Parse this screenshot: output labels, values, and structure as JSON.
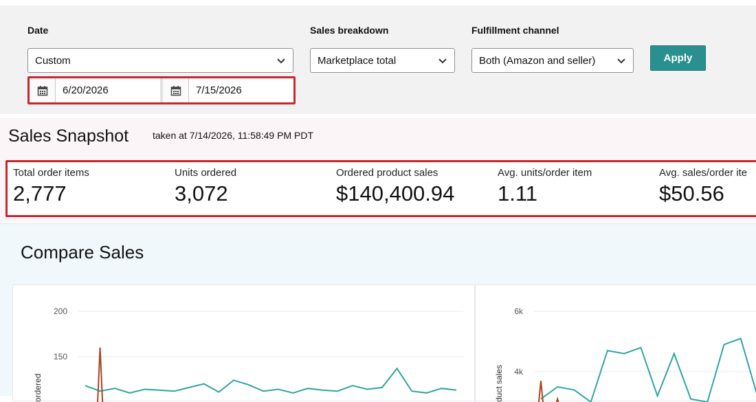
{
  "filters": {
    "date_label": "Date",
    "date_value": "Custom",
    "start_date": "6/20/2026",
    "end_date": "7/15/2026",
    "breakdown_label": "Sales breakdown",
    "breakdown_value": "Marketplace total",
    "fulfillment_label": "Fulfillment channel",
    "fulfillment_value": "Both (Amazon and seller)",
    "apply_label": "Apply"
  },
  "snapshot": {
    "title": "Sales Snapshot",
    "taken": "taken at 7/14/2026, 11:58:49 PM PDT",
    "metrics": [
      {
        "label": "Total order items",
        "value": "2,777"
      },
      {
        "label": "Units ordered",
        "value": "3,072"
      },
      {
        "label": "Ordered product sales",
        "value": "$140,400.94"
      },
      {
        "label": "Avg. units/order item",
        "value": "1.11"
      },
      {
        "label": "Avg. sales/order ite",
        "value": "$50.56"
      }
    ]
  },
  "compare": {
    "title": "Compare Sales"
  },
  "colors": {
    "accent": "#2a8f8f",
    "highlight": "#c9252d",
    "series_teal": "#2fa59b",
    "series_brown": "#a8431f"
  },
  "chart_data": [
    {
      "type": "line",
      "ylabel": "ordered",
      "yticks": [
        "200",
        "150"
      ],
      "ylim": [
        100,
        200
      ],
      "x": [
        0,
        1,
        2,
        3,
        4,
        5,
        6,
        7,
        8,
        9,
        10,
        11,
        12,
        13,
        14,
        15,
        16,
        17,
        18,
        19,
        20,
        21,
        22,
        23,
        24,
        25
      ],
      "series": [
        {
          "values": [
            118,
            112,
            115,
            110,
            114,
            113,
            112,
            116,
            120,
            111,
            124,
            119,
            112,
            114,
            110,
            115,
            113,
            112,
            118,
            114,
            116,
            137,
            112,
            110,
            115,
            113
          ]
        },
        {
          "values": [
            null,
            160,
            null,
            null,
            null,
            null,
            null,
            null,
            null,
            null,
            null,
            null,
            null,
            null,
            null,
            null,
            null,
            null,
            null,
            null,
            null,
            null,
            null,
            null,
            null,
            null
          ]
        }
      ],
      "grid": true
    },
    {
      "type": "line",
      "ylabel": "duct sales",
      "yticks": [
        "6k",
        "4k"
      ],
      "ylim": [
        3000,
        6500
      ],
      "x": [
        0,
        1,
        2,
        3,
        4,
        5,
        6,
        7,
        8,
        9,
        10,
        11,
        12,
        13
      ],
      "series": [
        {
          "values": [
            3100,
            3500,
            3400,
            3000,
            4700,
            4600,
            4800,
            3200,
            4600,
            3100,
            3000,
            4900,
            5100,
            3200
          ]
        },
        {
          "values": [
            3700,
            3100,
            null,
            null,
            null,
            null,
            null,
            null,
            null,
            null,
            null,
            null,
            null,
            null
          ]
        }
      ],
      "grid": true
    }
  ]
}
